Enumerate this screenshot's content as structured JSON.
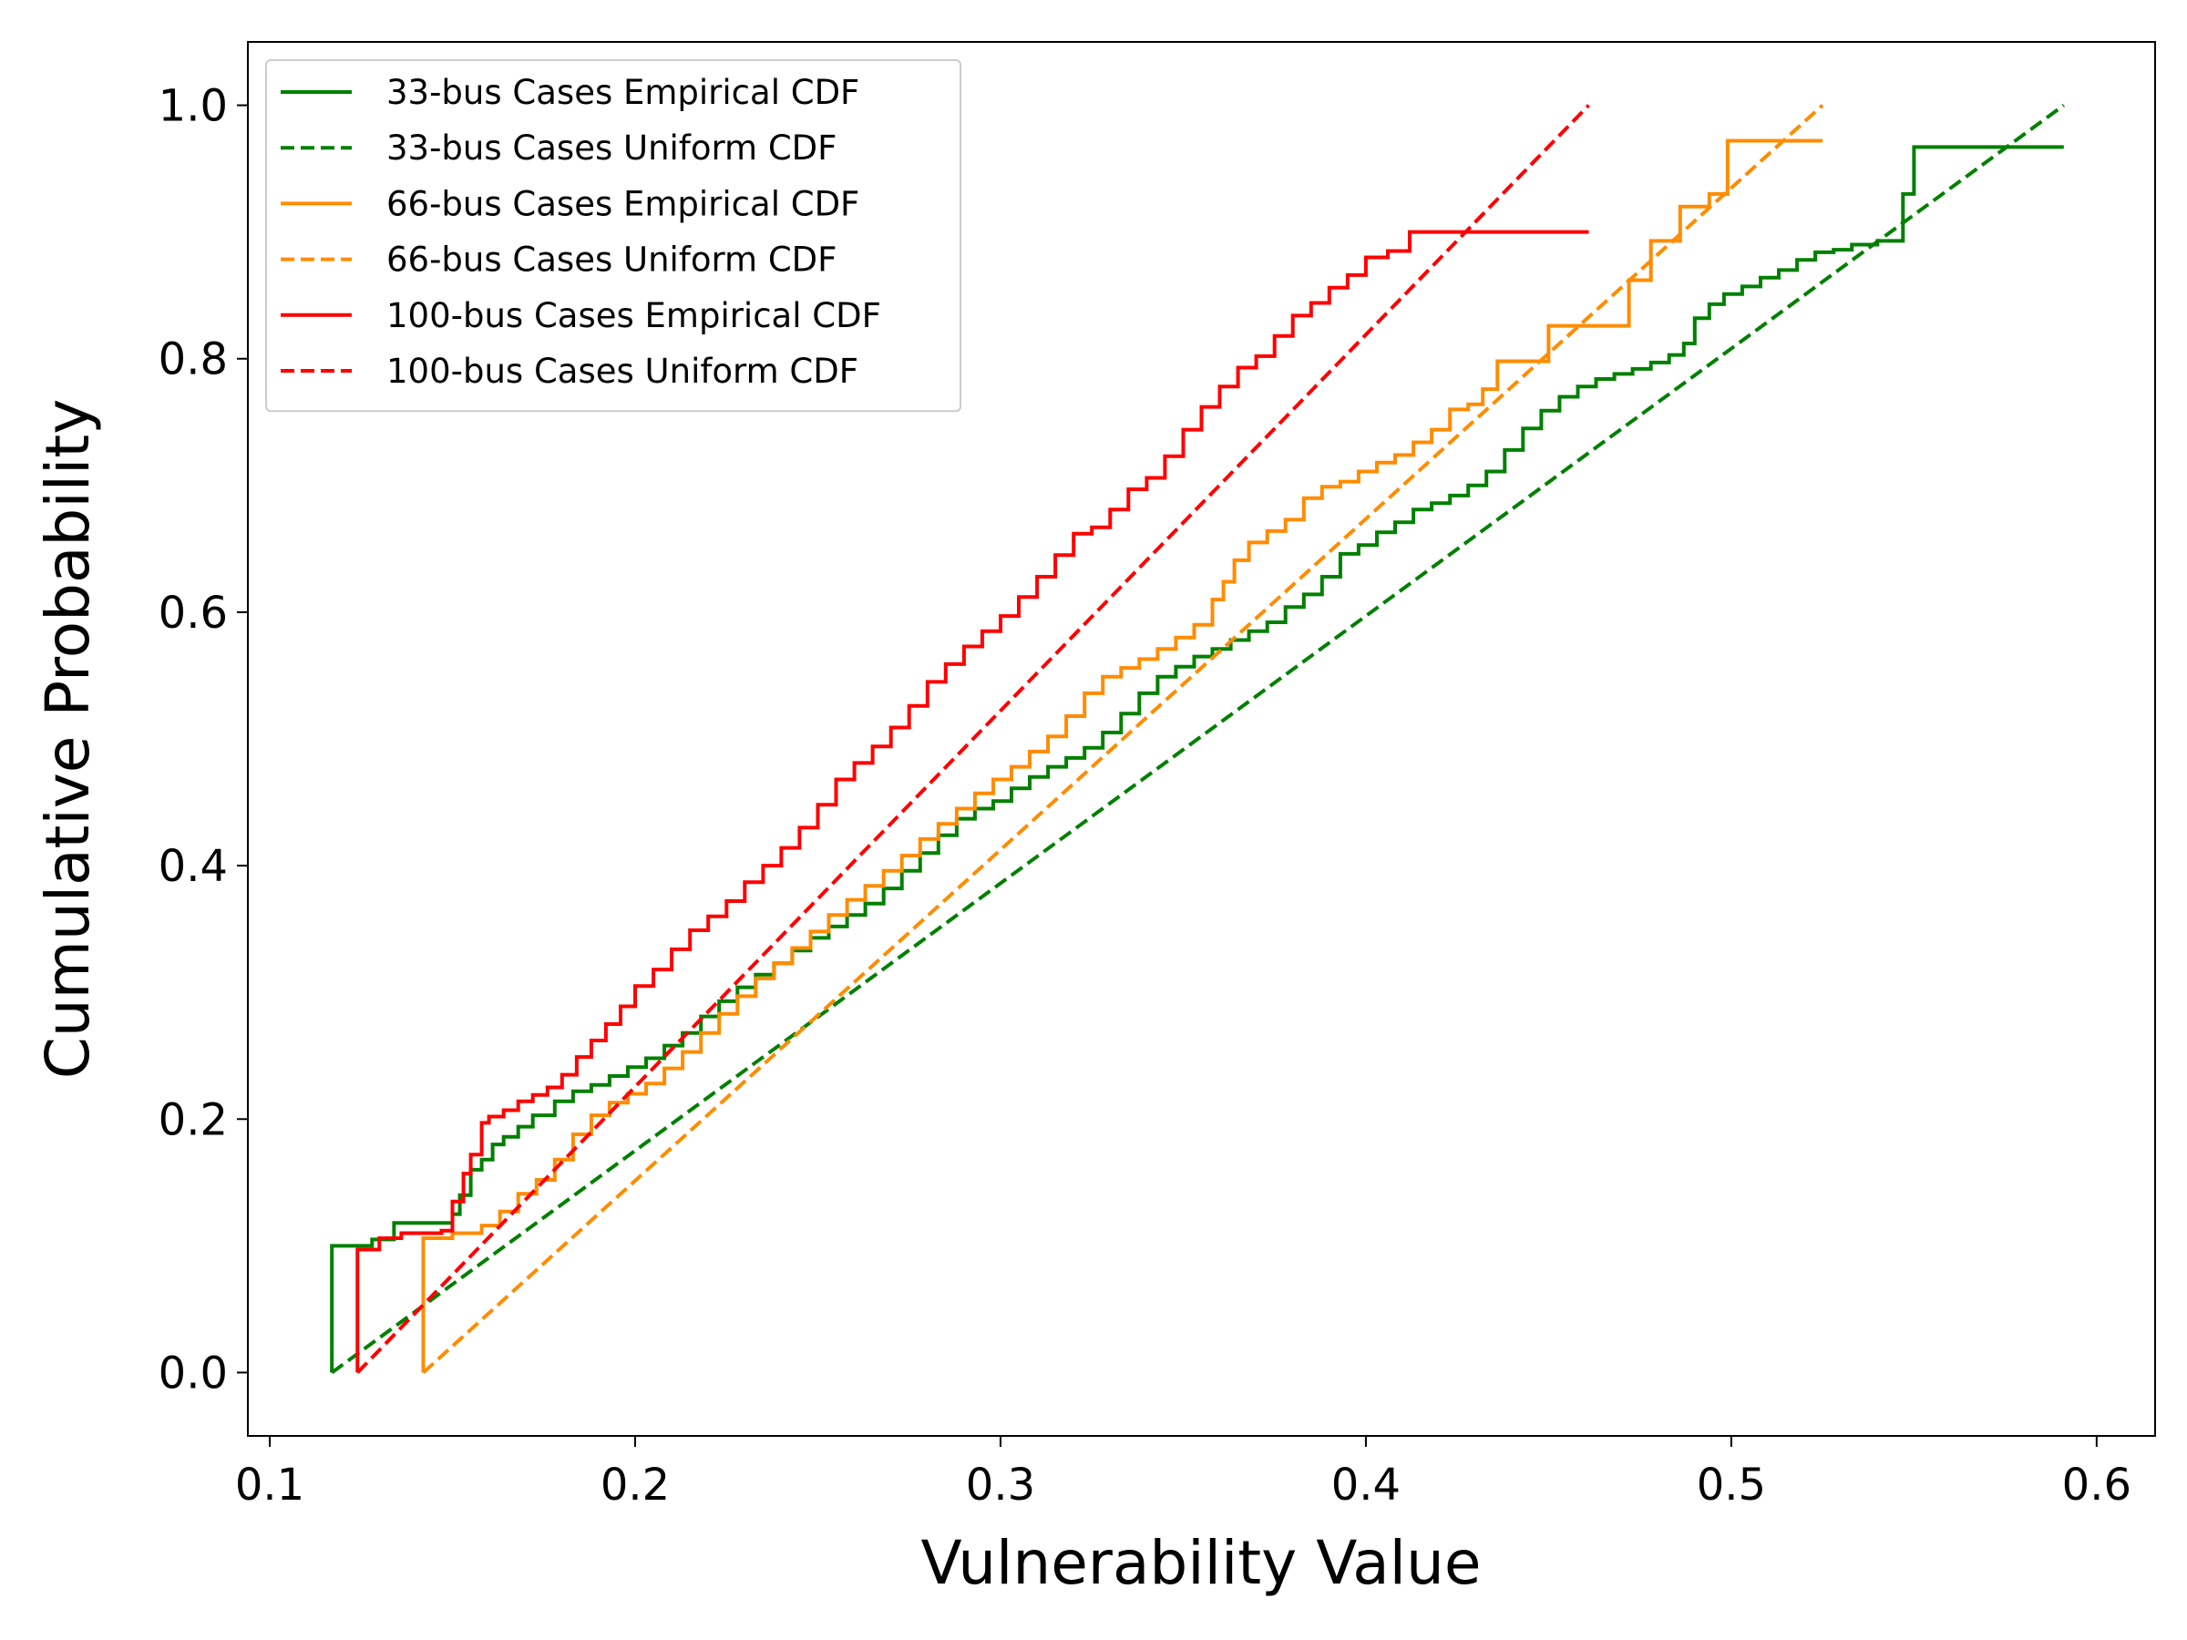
{
  "chart_data": {
    "type": "line",
    "title": "",
    "xlabel": "Vulnerability Value",
    "ylabel": "Cumulative Probability",
    "xlim": [
      0.094,
      0.616
    ],
    "ylim": [
      -0.05,
      1.05
    ],
    "xticks": [
      0.1,
      0.2,
      0.3,
      0.4,
      0.5,
      0.6
    ],
    "xtick_labels": [
      "0.1",
      "0.2",
      "0.3",
      "0.4",
      "0.5",
      "0.6"
    ],
    "yticks": [
      0.0,
      0.2,
      0.4,
      0.6,
      0.8,
      1.0
    ],
    "ytick_labels": [
      "0.0",
      "0.2",
      "0.4",
      "0.6",
      "0.8",
      "1.0"
    ],
    "grid": false,
    "legend_position": "top-left",
    "series": [
      {
        "name": "33-bus Cases Empirical CDF",
        "color": "#008000",
        "style": "solid",
        "step": true,
        "x": [
          0.117,
          0.117,
          0.128,
          0.134,
          0.15,
          0.152,
          0.155,
          0.158,
          0.161,
          0.164,
          0.168,
          0.172,
          0.178,
          0.183,
          0.188,
          0.193,
          0.198,
          0.203,
          0.208,
          0.213,
          0.218,
          0.223,
          0.228,
          0.233,
          0.238,
          0.243,
          0.248,
          0.253,
          0.258,
          0.263,
          0.268,
          0.273,
          0.278,
          0.283,
          0.288,
          0.293,
          0.298,
          0.303,
          0.308,
          0.313,
          0.318,
          0.323,
          0.328,
          0.333,
          0.338,
          0.343,
          0.348,
          0.353,
          0.358,
          0.363,
          0.368,
          0.373,
          0.378,
          0.383,
          0.388,
          0.393,
          0.398,
          0.403,
          0.408,
          0.413,
          0.418,
          0.423,
          0.428,
          0.433,
          0.438,
          0.443,
          0.448,
          0.453,
          0.458,
          0.463,
          0.468,
          0.473,
          0.478,
          0.483,
          0.487,
          0.49,
          0.494,
          0.498,
          0.503,
          0.508,
          0.513,
          0.518,
          0.523,
          0.528,
          0.533,
          0.54,
          0.547,
          0.55,
          0.591
        ],
        "y": [
          0.0,
          0.1,
          0.105,
          0.118,
          0.125,
          0.14,
          0.16,
          0.168,
          0.18,
          0.186,
          0.194,
          0.203,
          0.214,
          0.222,
          0.227,
          0.234,
          0.241,
          0.248,
          0.258,
          0.268,
          0.281,
          0.293,
          0.304,
          0.314,
          0.323,
          0.333,
          0.343,
          0.352,
          0.361,
          0.37,
          0.382,
          0.396,
          0.41,
          0.424,
          0.437,
          0.445,
          0.451,
          0.461,
          0.47,
          0.478,
          0.485,
          0.493,
          0.505,
          0.52,
          0.536,
          0.549,
          0.557,
          0.565,
          0.571,
          0.578,
          0.585,
          0.592,
          0.604,
          0.614,
          0.628,
          0.646,
          0.653,
          0.663,
          0.671,
          0.681,
          0.686,
          0.692,
          0.7,
          0.711,
          0.728,
          0.745,
          0.759,
          0.77,
          0.778,
          0.784,
          0.788,
          0.792,
          0.797,
          0.803,
          0.812,
          0.832,
          0.843,
          0.851,
          0.857,
          0.864,
          0.87,
          0.878,
          0.884,
          0.886,
          0.89,
          0.893,
          0.93,
          0.967,
          0.967
        ]
      },
      {
        "name": "33-bus Cases Uniform CDF",
        "color": "#008000",
        "style": "dashed",
        "step": false,
        "x": [
          0.117,
          0.591
        ],
        "y": [
          0.0,
          1.0
        ]
      },
      {
        "name": "66-bus Cases Empirical CDF",
        "color": "#ff8c00",
        "style": "solid",
        "step": true,
        "x": [
          0.142,
          0.142,
          0.15,
          0.158,
          0.163,
          0.168,
          0.173,
          0.178,
          0.183,
          0.188,
          0.193,
          0.198,
          0.203,
          0.208,
          0.213,
          0.218,
          0.223,
          0.228,
          0.233,
          0.238,
          0.243,
          0.248,
          0.253,
          0.258,
          0.263,
          0.268,
          0.273,
          0.278,
          0.283,
          0.288,
          0.293,
          0.298,
          0.303,
          0.308,
          0.313,
          0.318,
          0.323,
          0.328,
          0.333,
          0.338,
          0.343,
          0.348,
          0.353,
          0.358,
          0.361,
          0.364,
          0.368,
          0.373,
          0.378,
          0.383,
          0.388,
          0.393,
          0.398,
          0.403,
          0.408,
          0.413,
          0.418,
          0.423,
          0.428,
          0.432,
          0.436,
          0.443,
          0.45,
          0.457,
          0.465,
          0.472,
          0.478,
          0.486,
          0.494,
          0.499,
          0.525
        ],
        "y": [
          0.0,
          0.106,
          0.11,
          0.116,
          0.127,
          0.141,
          0.152,
          0.168,
          0.188,
          0.203,
          0.213,
          0.22,
          0.228,
          0.24,
          0.253,
          0.268,
          0.283,
          0.297,
          0.311,
          0.323,
          0.335,
          0.348,
          0.361,
          0.373,
          0.384,
          0.396,
          0.408,
          0.421,
          0.433,
          0.445,
          0.457,
          0.468,
          0.478,
          0.49,
          0.502,
          0.518,
          0.536,
          0.549,
          0.556,
          0.563,
          0.571,
          0.58,
          0.59,
          0.61,
          0.624,
          0.641,
          0.655,
          0.664,
          0.673,
          0.69,
          0.699,
          0.703,
          0.711,
          0.718,
          0.724,
          0.734,
          0.744,
          0.76,
          0.764,
          0.776,
          0.798,
          0.798,
          0.826,
          0.826,
          0.826,
          0.862,
          0.893,
          0.92,
          0.93,
          0.972,
          0.972
        ]
      },
      {
        "name": "66-bus Cases Uniform CDF",
        "color": "#ff8c00",
        "style": "dashed",
        "step": false,
        "x": [
          0.142,
          0.525
        ],
        "y": [
          0.0,
          1.0
        ]
      },
      {
        "name": "100-bus Cases Empirical CDF",
        "color": "#ff0000",
        "style": "solid",
        "step": true,
        "x": [
          0.124,
          0.124,
          0.13,
          0.136,
          0.147,
          0.15,
          0.153,
          0.155,
          0.158,
          0.16,
          0.164,
          0.168,
          0.172,
          0.176,
          0.18,
          0.184,
          0.188,
          0.192,
          0.196,
          0.2,
          0.205,
          0.21,
          0.215,
          0.22,
          0.225,
          0.23,
          0.235,
          0.24,
          0.245,
          0.25,
          0.255,
          0.26,
          0.265,
          0.27,
          0.275,
          0.28,
          0.285,
          0.29,
          0.295,
          0.3,
          0.305,
          0.31,
          0.315,
          0.32,
          0.325,
          0.33,
          0.335,
          0.34,
          0.345,
          0.35,
          0.355,
          0.36,
          0.365,
          0.37,
          0.375,
          0.38,
          0.385,
          0.39,
          0.395,
          0.4,
          0.406,
          0.412,
          0.418,
          0.43,
          0.461
        ],
        "y": [
          0.0,
          0.097,
          0.106,
          0.11,
          0.112,
          0.135,
          0.157,
          0.172,
          0.197,
          0.202,
          0.207,
          0.214,
          0.219,
          0.225,
          0.235,
          0.249,
          0.262,
          0.275,
          0.289,
          0.305,
          0.318,
          0.334,
          0.349,
          0.36,
          0.372,
          0.387,
          0.4,
          0.414,
          0.43,
          0.448,
          0.468,
          0.481,
          0.494,
          0.509,
          0.526,
          0.545,
          0.559,
          0.573,
          0.585,
          0.597,
          0.612,
          0.628,
          0.645,
          0.662,
          0.667,
          0.681,
          0.697,
          0.706,
          0.723,
          0.744,
          0.762,
          0.778,
          0.793,
          0.802,
          0.818,
          0.834,
          0.844,
          0.856,
          0.866,
          0.88,
          0.885,
          0.9,
          0.9,
          0.9,
          0.9
        ]
      },
      {
        "name": "100-bus Cases Uniform CDF",
        "color": "#ff0000",
        "style": "dashed",
        "step": false,
        "x": [
          0.124,
          0.461
        ],
        "y": [
          0.0,
          1.0
        ]
      }
    ]
  }
}
